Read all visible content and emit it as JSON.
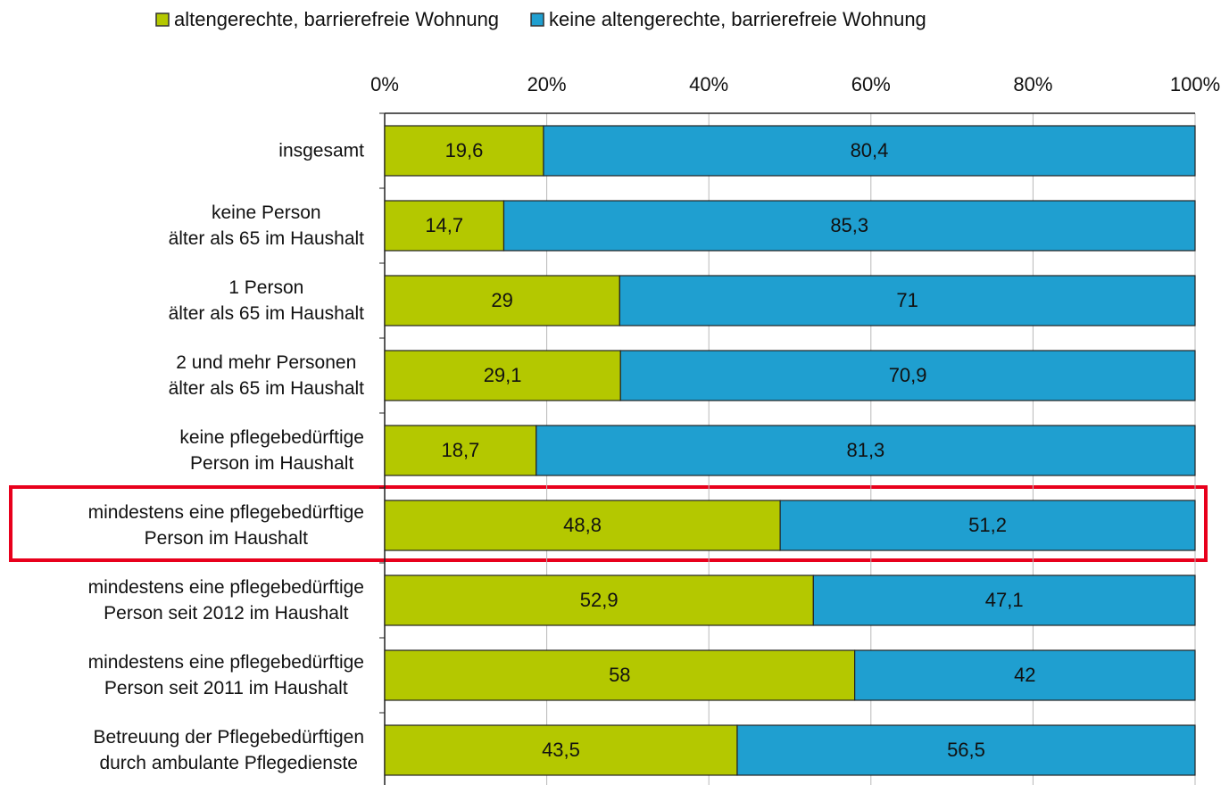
{
  "chart_data": {
    "type": "stacked-barh",
    "categories": [
      "insgesamt",
      "keine Person\nälter als 65 im Haushalt",
      "1 Person\nälter als 65 im Haushalt",
      "2 und mehr Personen\nälter als 65 im Haushalt",
      "keine pflegebedürftige\nPerson im Haushalt",
      "mindestens eine pflegebedürftige\nPerson im Haushalt",
      "mindestens eine pflegebedürftige\nPerson seit 2012 im Haushalt",
      "mindestens eine pflegebedürftige\nPerson seit 2011 im Haushalt",
      "Betreuung der Pflegebedürftigen\ndurch ambulante Pflegedienste"
    ],
    "series": [
      {
        "name": "altengerechte, barrierefreie Wohnung",
        "color": "#b4c800",
        "values": [
          19.6,
          14.7,
          29,
          29.1,
          18.7,
          48.8,
          52.9,
          58,
          43.5
        ],
        "value_labels": [
          "19,6",
          "14,7",
          "29",
          "29,1",
          "18,7",
          "48,8",
          "52,9",
          "58",
          "43,5"
        ]
      },
      {
        "name": "keine altengerechte, barrierefreie Wohnung",
        "color": "#1f9fd0",
        "values": [
          80.4,
          85.3,
          71,
          70.9,
          81.3,
          51.2,
          47.1,
          42,
          56.5
        ],
        "value_labels": [
          "80,4",
          "85,3",
          "71",
          "70,9",
          "81,3",
          "51,2",
          "47,1",
          "42",
          "56,5"
        ]
      }
    ],
    "xlim": [
      0,
      100
    ],
    "xticks": [
      {
        "value": 0,
        "label": "0%"
      },
      {
        "value": 20,
        "label": "20%"
      },
      {
        "value": 40,
        "label": "40%"
      },
      {
        "value": 60,
        "label": "60%"
      },
      {
        "value": 80,
        "label": "80%"
      },
      {
        "value": 100,
        "label": "100%"
      }
    ],
    "grid": true,
    "legend": "top"
  }
}
